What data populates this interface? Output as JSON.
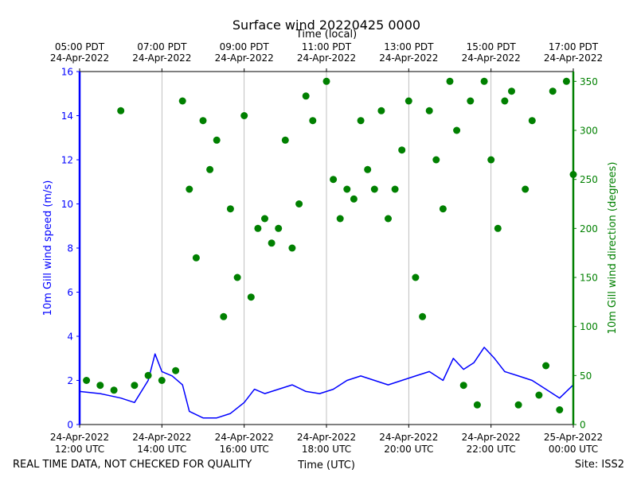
{
  "chart_data": {
    "type": "line+scatter",
    "title": "Surface wind 20220425 0000",
    "top_axis_label": "Time (local)",
    "xlabel": "Time (UTC)",
    "ylabel_left": "10m Gill wind speed (m/s)",
    "ylabel_right": "10m Gill wind direction (degrees)",
    "xlim_utc": [
      "2022-04-24T12:00",
      "2022-04-25T00:00"
    ],
    "ylim_left": [
      0,
      16
    ],
    "ylim_right": [
      0,
      360
    ],
    "grid": "vertical",
    "colors": {
      "speed": "#0000ff",
      "direction": "#008000"
    },
    "bottom_ticks": [
      {
        "t": "2022-04-24T12:00",
        "line1": "24-Apr-2022",
        "line2": "12:00 UTC"
      },
      {
        "t": "2022-04-24T14:00",
        "line1": "24-Apr-2022",
        "line2": "14:00 UTC"
      },
      {
        "t": "2022-04-24T16:00",
        "line1": "24-Apr-2022",
        "line2": "16:00 UTC"
      },
      {
        "t": "2022-04-24T18:00",
        "line1": "24-Apr-2022",
        "line2": "18:00 UTC"
      },
      {
        "t": "2022-04-24T20:00",
        "line1": "24-Apr-2022",
        "line2": "20:00 UTC"
      },
      {
        "t": "2022-04-24T22:00",
        "line1": "24-Apr-2022",
        "line2": "22:00 UTC"
      },
      {
        "t": "2022-04-25T00:00",
        "line1": "25-Apr-2022",
        "line2": "00:00 UTC"
      }
    ],
    "top_ticks": [
      {
        "t": "2022-04-24T12:00",
        "line1": "05:00 PDT",
        "line2": "24-Apr-2022"
      },
      {
        "t": "2022-04-24T14:00",
        "line1": "07:00 PDT",
        "line2": "24-Apr-2022"
      },
      {
        "t": "2022-04-24T16:00",
        "line1": "09:00 PDT",
        "line2": "24-Apr-2022"
      },
      {
        "t": "2022-04-24T18:00",
        "line1": "11:00 PDT",
        "line2": "24-Apr-2022"
      },
      {
        "t": "2022-04-24T20:00",
        "line1": "13:00 PDT",
        "line2": "24-Apr-2022"
      },
      {
        "t": "2022-04-24T22:00",
        "line1": "15:00 PDT",
        "line2": "24-Apr-2022"
      },
      {
        "t": "2022-04-25T00:00",
        "line1": "17:00 PDT",
        "line2": "24-Apr-2022"
      }
    ],
    "left_ticks": [
      "0",
      "2",
      "4",
      "6",
      "8",
      "10",
      "12",
      "14",
      "16"
    ],
    "right_ticks": [
      "0",
      "50",
      "100",
      "150",
      "200",
      "250",
      "300",
      "350"
    ],
    "series": [
      {
        "kind": "line",
        "axis": "left",
        "points": [
          [
            "2022-04-24T12:00",
            1.5
          ],
          [
            "2022-04-24T12:30",
            1.4
          ],
          [
            "2022-04-24T13:00",
            1.2
          ],
          [
            "2022-04-24T13:20",
            1.0
          ],
          [
            "2022-04-24T13:40",
            2.0
          ],
          [
            "2022-04-24T13:50",
            3.2
          ],
          [
            "2022-04-24T14:00",
            2.4
          ],
          [
            "2022-04-24T14:15",
            2.2
          ],
          [
            "2022-04-24T14:30",
            1.8
          ],
          [
            "2022-04-24T14:40",
            0.6
          ],
          [
            "2022-04-24T15:00",
            0.3
          ],
          [
            "2022-04-24T15:20",
            0.3
          ],
          [
            "2022-04-24T15:40",
            0.5
          ],
          [
            "2022-04-24T16:00",
            1.0
          ],
          [
            "2022-04-24T16:15",
            1.6
          ],
          [
            "2022-04-24T16:30",
            1.4
          ],
          [
            "2022-04-24T16:50",
            1.6
          ],
          [
            "2022-04-24T17:10",
            1.8
          ],
          [
            "2022-04-24T17:30",
            1.5
          ],
          [
            "2022-04-24T17:50",
            1.4
          ],
          [
            "2022-04-24T18:10",
            1.6
          ],
          [
            "2022-04-24T18:30",
            2.0
          ],
          [
            "2022-04-24T18:50",
            2.2
          ],
          [
            "2022-04-24T19:10",
            2.0
          ],
          [
            "2022-04-24T19:30",
            1.8
          ],
          [
            "2022-04-24T19:50",
            2.0
          ],
          [
            "2022-04-24T20:10",
            2.2
          ],
          [
            "2022-04-24T20:30",
            2.4
          ],
          [
            "2022-04-24T20:50",
            2.0
          ],
          [
            "2022-04-24T21:05",
            3.0
          ],
          [
            "2022-04-24T21:20",
            2.5
          ],
          [
            "2022-04-24T21:35",
            2.8
          ],
          [
            "2022-04-24T21:50",
            3.5
          ],
          [
            "2022-04-24T22:05",
            3.0
          ],
          [
            "2022-04-24T22:20",
            2.4
          ],
          [
            "2022-04-24T22:40",
            2.2
          ],
          [
            "2022-04-24T23:00",
            2.0
          ],
          [
            "2022-04-24T23:20",
            1.6
          ],
          [
            "2022-04-24T23:40",
            1.2
          ],
          [
            "2022-04-25T00:00",
            1.8
          ]
        ]
      },
      {
        "kind": "scatter",
        "axis": "right",
        "points": [
          [
            "2022-04-24T12:10",
            45
          ],
          [
            "2022-04-24T12:30",
            40
          ],
          [
            "2022-04-24T12:50",
            35
          ],
          [
            "2022-04-24T13:00",
            320
          ],
          [
            "2022-04-24T13:20",
            40
          ],
          [
            "2022-04-24T13:40",
            50
          ],
          [
            "2022-04-24T14:00",
            45
          ],
          [
            "2022-04-24T14:20",
            55
          ],
          [
            "2022-04-24T14:30",
            330
          ],
          [
            "2022-04-24T14:40",
            240
          ],
          [
            "2022-04-24T14:50",
            170
          ],
          [
            "2022-04-24T15:00",
            310
          ],
          [
            "2022-04-24T15:10",
            260
          ],
          [
            "2022-04-24T15:20",
            290
          ],
          [
            "2022-04-24T15:30",
            110
          ],
          [
            "2022-04-24T15:40",
            220
          ],
          [
            "2022-04-24T15:50",
            150
          ],
          [
            "2022-04-24T16:00",
            315
          ],
          [
            "2022-04-24T16:10",
            130
          ],
          [
            "2022-04-24T16:20",
            200
          ],
          [
            "2022-04-24T16:30",
            210
          ],
          [
            "2022-04-24T16:40",
            185
          ],
          [
            "2022-04-24T16:50",
            200
          ],
          [
            "2022-04-24T17:00",
            290
          ],
          [
            "2022-04-24T17:10",
            180
          ],
          [
            "2022-04-24T17:20",
            225
          ],
          [
            "2022-04-24T17:30",
            335
          ],
          [
            "2022-04-24T17:40",
            310
          ],
          [
            "2022-04-24T18:00",
            350
          ],
          [
            "2022-04-24T18:10",
            250
          ],
          [
            "2022-04-24T18:20",
            210
          ],
          [
            "2022-04-24T18:30",
            240
          ],
          [
            "2022-04-24T18:40",
            230
          ],
          [
            "2022-04-24T18:50",
            310
          ],
          [
            "2022-04-24T19:00",
            260
          ],
          [
            "2022-04-24T19:10",
            240
          ],
          [
            "2022-04-24T19:20",
            320
          ],
          [
            "2022-04-24T19:30",
            210
          ],
          [
            "2022-04-24T19:40",
            240
          ],
          [
            "2022-04-24T19:50",
            280
          ],
          [
            "2022-04-24T20:00",
            330
          ],
          [
            "2022-04-24T20:10",
            150
          ],
          [
            "2022-04-24T20:20",
            110
          ],
          [
            "2022-04-24T20:30",
            320
          ],
          [
            "2022-04-24T20:40",
            270
          ],
          [
            "2022-04-24T20:50",
            220
          ],
          [
            "2022-04-24T21:00",
            350
          ],
          [
            "2022-04-24T21:10",
            300
          ],
          [
            "2022-04-24T21:20",
            40
          ],
          [
            "2022-04-24T21:30",
            330
          ],
          [
            "2022-04-24T21:40",
            20
          ],
          [
            "2022-04-24T21:50",
            350
          ],
          [
            "2022-04-24T22:00",
            270
          ],
          [
            "2022-04-24T22:10",
            200
          ],
          [
            "2022-04-24T22:20",
            330
          ],
          [
            "2022-04-24T22:30",
            340
          ],
          [
            "2022-04-24T22:40",
            20
          ],
          [
            "2022-04-24T22:50",
            240
          ],
          [
            "2022-04-24T23:00",
            310
          ],
          [
            "2022-04-24T23:10",
            30
          ],
          [
            "2022-04-24T23:20",
            60
          ],
          [
            "2022-04-24T23:30",
            340
          ],
          [
            "2022-04-24T23:40",
            15
          ],
          [
            "2022-04-24T23:50",
            350
          ],
          [
            "2022-04-25T00:00",
            255
          ]
        ]
      }
    ]
  },
  "footer": {
    "note": "REAL TIME DATA, NOT CHECKED FOR QUALITY",
    "site": "Site: ISS2"
  }
}
